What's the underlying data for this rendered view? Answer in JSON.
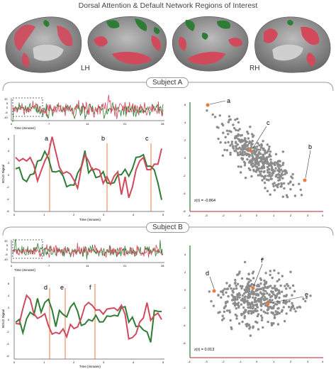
{
  "title": "Dorsal Attention & Default Network Regions of Interest",
  "hemispheres": {
    "left": "LH",
    "right": "RH"
  },
  "colors": {
    "default_network": "#d2495c",
    "dorsal_attention": "#2e7d34",
    "marker": "#e8793d",
    "scatter": "#8c8c8c"
  },
  "subjects": [
    {
      "label": "Subject A",
      "overview": {
        "xlabel": "Time (minutes)",
        "xticks": [
          "0",
          "7",
          "14",
          "21",
          "28"
        ],
        "yticks": [
          "10",
          "5",
          "0",
          "-5",
          "-10"
        ]
      },
      "detail": {
        "xlabel": "Time (minutes)",
        "ylabel": "BOLD Signal",
        "xticks": [
          "0",
          "1",
          "2",
          "3",
          "4",
          "5"
        ],
        "yticks": [
          "6",
          "4",
          "2",
          "0",
          "-2",
          "-4",
          "-6"
        ],
        "event_labels": [
          "a",
          "b",
          "c"
        ]
      },
      "scatter": {
        "stat": "z(r) = -0.864",
        "xticks": [
          "-4",
          "-3",
          "-2",
          "-1",
          "0",
          "1",
          "2",
          "3",
          "4"
        ],
        "yticks": [
          "6",
          "4",
          "2",
          "0",
          "-2",
          "-4",
          "-6"
        ],
        "point_labels": [
          "a",
          "b",
          "c"
        ]
      }
    },
    {
      "label": "Subject B",
      "overview": {
        "xlabel": "Time (minutes)",
        "xticks": [
          "0",
          "7",
          "14",
          "21",
          "28"
        ],
        "yticks": [
          "10",
          "5",
          "0",
          "-5",
          "-10"
        ]
      },
      "detail": {
        "xlabel": "Time (minutes)",
        "ylabel": "BOLD Signal",
        "xticks": [
          "0",
          "1",
          "2",
          "3",
          "4",
          "5"
        ],
        "yticks": [
          "6",
          "4",
          "2",
          "0",
          "-2",
          "-4",
          "-6"
        ],
        "event_labels": [
          "d",
          "e",
          "f"
        ]
      },
      "scatter": {
        "stat": "z(r) = 0.013",
        "xticks": [
          "-4",
          "-3",
          "-2",
          "-1",
          "0",
          "1",
          "2",
          "3",
          "4"
        ],
        "yticks": [
          "4",
          "2",
          "0",
          "-2",
          "-4",
          "-6"
        ],
        "point_labels": [
          "d",
          "e",
          "f"
        ]
      }
    }
  ]
}
